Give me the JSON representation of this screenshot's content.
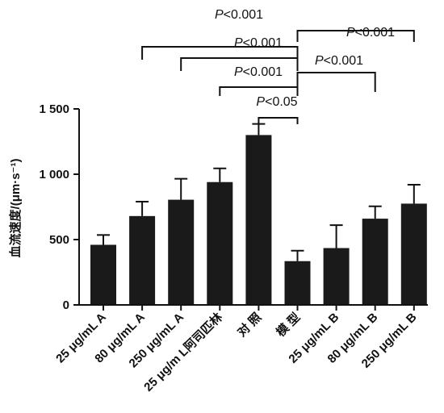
{
  "chart_data": {
    "type": "bar",
    "categories": [
      "25 μg/mL A",
      "80 μg/mL A",
      "250 μg/mL A",
      "25 μg/m L阿司匹林",
      "对 照",
      "模 型",
      "25 μg/mL B",
      "80 μg/mL B",
      "250 μg/mL B"
    ],
    "values": [
      460,
      680,
      805,
      940,
      1300,
      335,
      435,
      660,
      775
    ],
    "errors": [
      75,
      110,
      160,
      105,
      85,
      80,
      175,
      95,
      145
    ],
    "title": "",
    "xlabel": "",
    "ylabel": "血流速度/(μm·s⁻¹)",
    "ylim": [
      0,
      1500
    ],
    "yticks": [
      0,
      500,
      1000,
      1500
    ],
    "ytick_labels": [
      "0",
      "500",
      "1 000",
      "1 500"
    ],
    "significance": [
      {
        "from": 5,
        "to": 4,
        "label": "P<0.05"
      },
      {
        "from": 5,
        "to": 3,
        "label": "P<0.001"
      },
      {
        "from": 5,
        "to": 2,
        "label": "P<0.001"
      },
      {
        "from": 5,
        "to": 1,
        "label": "P<0.001"
      },
      {
        "from": 5,
        "to": 7,
        "label": "P<0.001"
      },
      {
        "from": 5,
        "to": 8,
        "label": "P<0.001"
      }
    ],
    "grid": false,
    "bar_color": "#1a1a1a"
  }
}
